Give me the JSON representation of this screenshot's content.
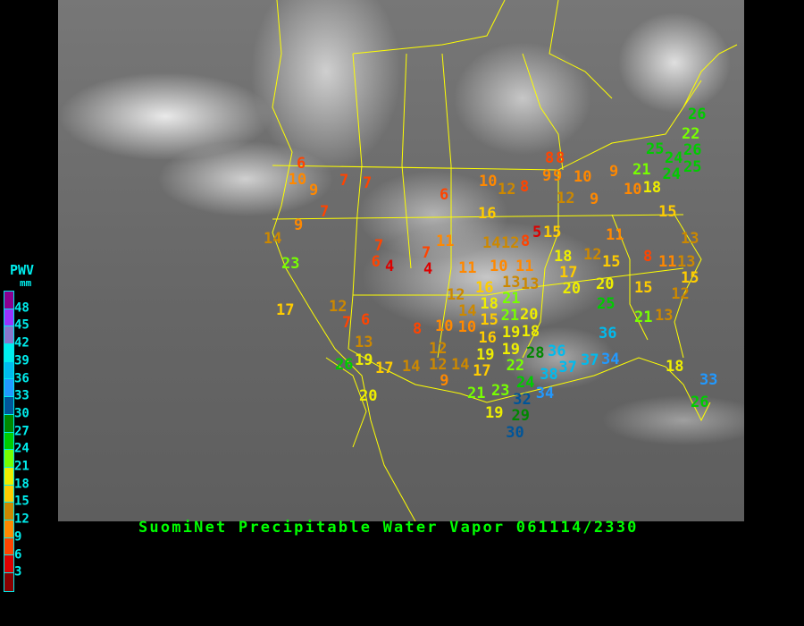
{
  "title": "SuomiNet Precipitable Water Vapor 061114/2330",
  "legend": {
    "title": "PWV",
    "unit": "mm",
    "labels": [
      "48",
      "45",
      "42",
      "39",
      "36",
      "33",
      "30",
      "27",
      "24",
      "21",
      "18",
      "15",
      "12",
      "9",
      "6",
      "3"
    ],
    "colors": [
      "#8b0090",
      "#9933ff",
      "#8877cc",
      "#00eeee",
      "#00bbee",
      "#2299ff",
      "#005599",
      "#008800",
      "#00cc00",
      "#77ff00",
      "#eeee00",
      "#ffcc00",
      "#cc8800",
      "#ff8800",
      "#ff4400",
      "#dd0000",
      "#880000"
    ]
  },
  "stations": [
    6,
    10,
    9,
    7,
    7,
    7,
    9,
    14,
    23,
    17,
    12,
    7,
    6,
    13,
    19,
    26,
    17,
    14,
    12,
    20,
    7,
    6,
    4,
    4,
    7,
    6,
    11,
    10,
    12,
    8,
    16,
    8,
    9,
    14,
    12,
    8,
    5,
    15,
    11,
    13,
    18,
    12,
    15,
    8,
    11,
    13,
    15,
    17,
    11,
    10,
    11,
    13,
    13,
    20,
    20,
    15,
    12,
    25,
    16,
    18,
    21,
    12,
    14,
    15,
    21,
    19,
    20,
    21,
    13,
    10,
    10,
    16,
    19,
    18,
    36,
    12,
    19,
    22,
    28,
    36,
    37,
    37,
    34,
    14,
    17,
    24,
    38,
    18,
    34,
    33,
    21,
    23,
    32,
    26,
    19,
    29,
    30,
    9,
    8,
    26,
    22,
    26,
    25,
    24,
    25,
    24,
    21,
    18,
    10,
    8,
    9,
    10,
    9,
    12,
    9,
    15
  ]
}
